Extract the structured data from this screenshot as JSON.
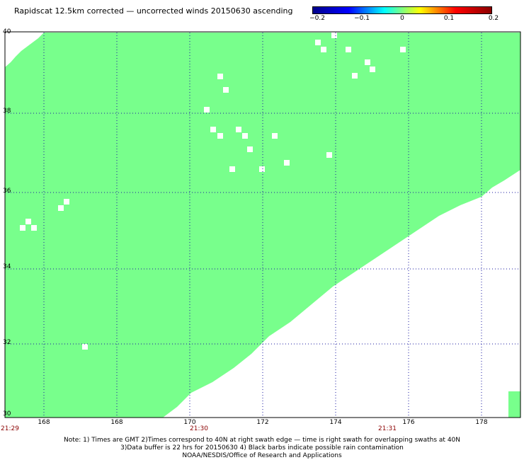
{
  "title": "Rapidscat 12.5km corrected — uncorrected winds 20150630 ascending",
  "colorbar": {
    "labels": [
      "−0.2",
      "−0.1",
      "0",
      "0.1",
      "0.2"
    ],
    "colors": [
      "#00008b",
      "#0000ff",
      "#00ffff",
      "#ffff00",
      "#ff0000",
      "#8b0000"
    ]
  },
  "map": {
    "fill_color": "#78ff8c",
    "missing_color": "#ffffff",
    "grid_color": "#1a1aa0",
    "lat_labels": [
      "40",
      "38",
      "36",
      "34",
      "32",
      "30"
    ],
    "lon_labels": [
      "168",
      "168",
      "170",
      "172",
      "174",
      "176",
      "178"
    ],
    "time_labels": [
      "21:29",
      "21:30",
      "21:31"
    ]
  },
  "notes": {
    "line1": "Note: 1) Times are GMT 2)Times correspond to 40N at right swath edge — time is right swath for overlapping swaths at 40N",
    "line2": "3)Data buffer is 22 hrs for 20150630 4) Black barbs indicate possible rain contamination",
    "line3": "NOAA/NESDIS/Office of Research and Applications"
  }
}
